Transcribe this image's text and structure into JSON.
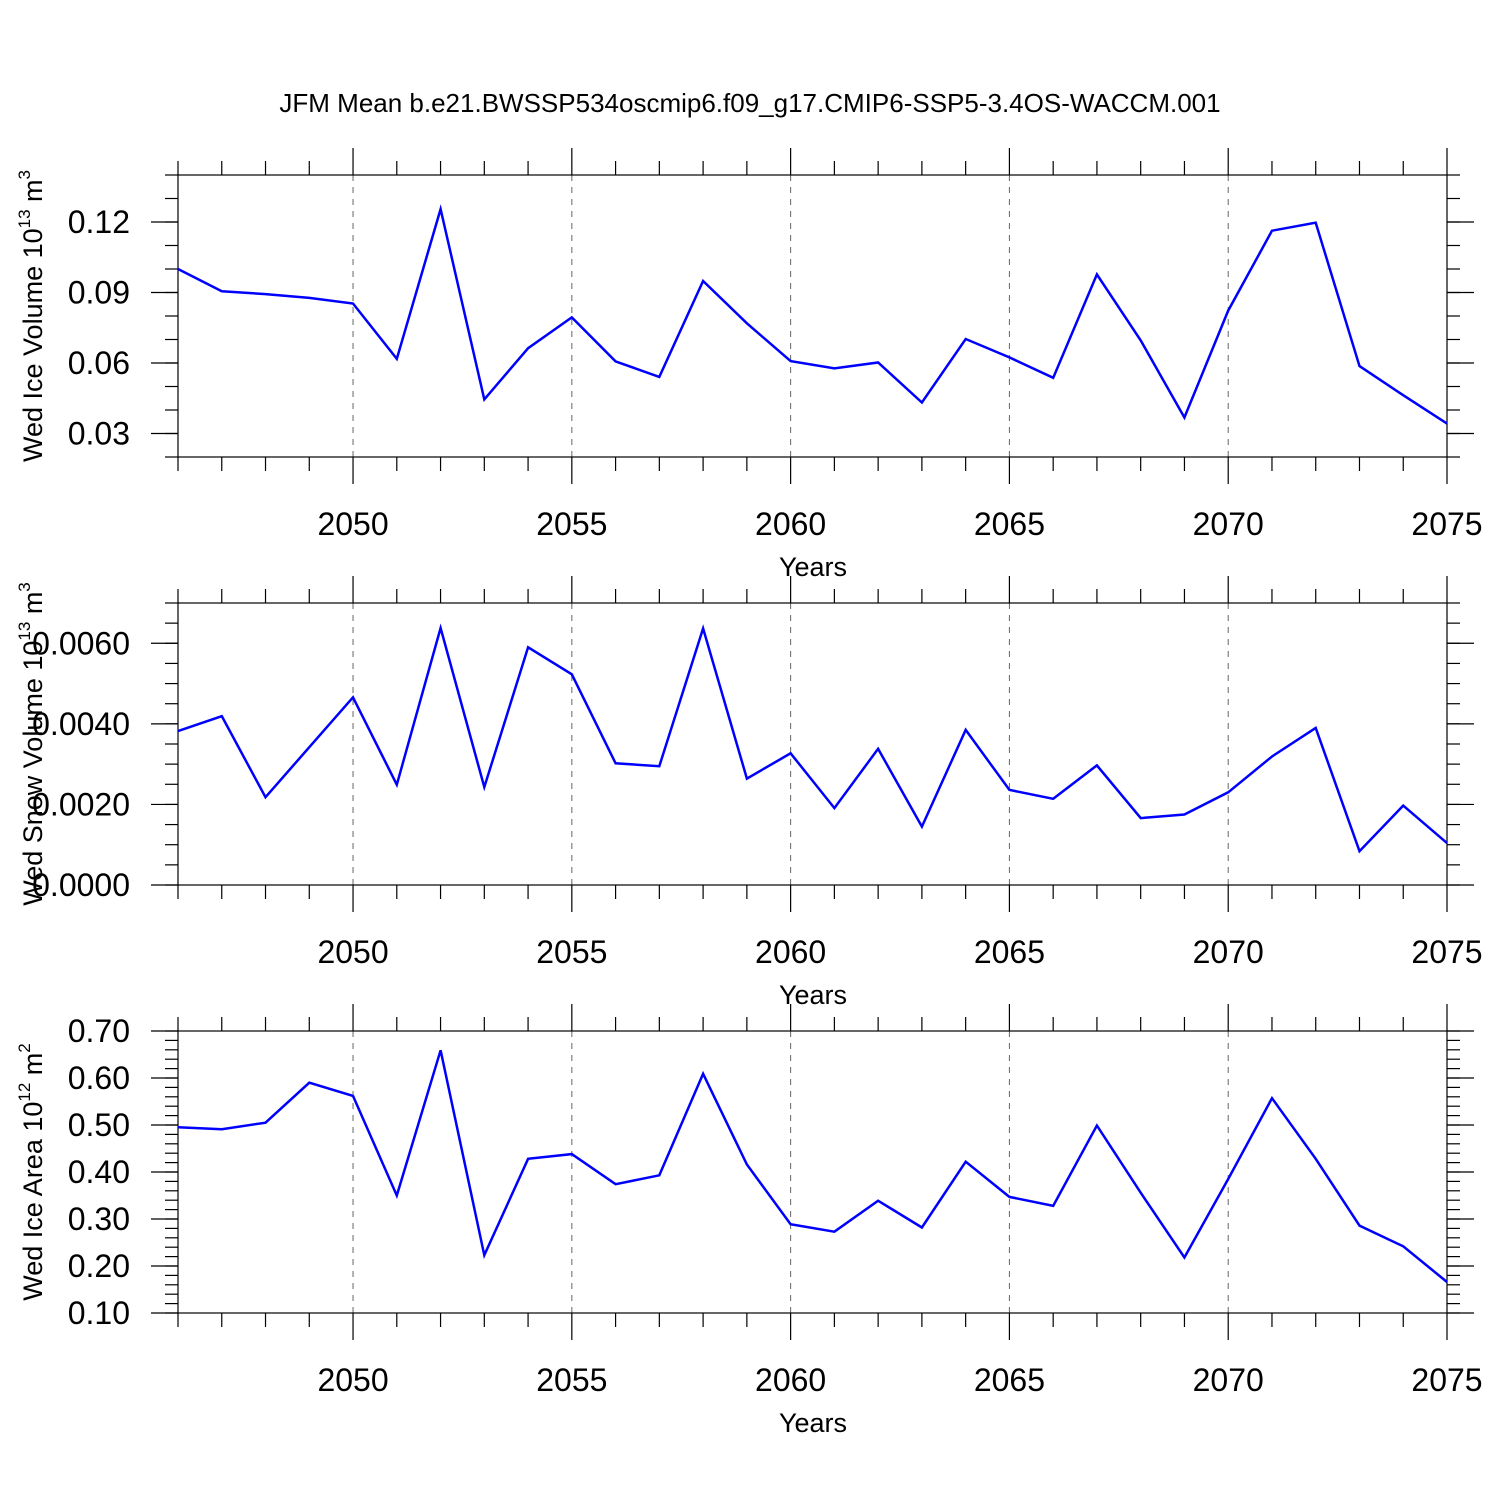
{
  "title": "JFM Mean b.e21.BWSSP534oscmip6.f09_g17.CMIP6-SSP5-3.4OS-WACCM.001",
  "colors": {
    "line": "#0000ff",
    "grid": "#666666",
    "axis": "#000000"
  },
  "chart_data": [
    {
      "type": "line",
      "xlabel": "Years",
      "ylabel": {
        "base": "Wed Ice Volume 10",
        "exp": "13",
        "unit": " m",
        "unit_exp": "3"
      },
      "xlim": [
        2046,
        2075
      ],
      "ylim": [
        0.02,
        0.14
      ],
      "xticks": [
        2050,
        2055,
        2060,
        2065,
        2070,
        2075
      ],
      "yticks": [
        0.03,
        0.06,
        0.09,
        0.12
      ],
      "ytick_labels": [
        "0.03",
        "0.06",
        "0.09",
        "0.12"
      ],
      "y_minor_step": 0.01,
      "grid_x": true,
      "x": [
        2046,
        2047,
        2048,
        2049,
        2050,
        2051,
        2052,
        2053,
        2054,
        2055,
        2056,
        2057,
        2058,
        2059,
        2060,
        2061,
        2062,
        2063,
        2064,
        2065,
        2066,
        2067,
        2068,
        2069,
        2070,
        2071,
        2072,
        2073,
        2074,
        2075
      ],
      "values": [
        0.1,
        0.0905,
        0.0893,
        0.0877,
        0.0853,
        0.0618,
        0.1255,
        0.0445,
        0.0663,
        0.0794,
        0.0607,
        0.0541,
        0.0949,
        0.0769,
        0.0608,
        0.0577,
        0.0602,
        0.0432,
        0.0702,
        0.0624,
        0.0537,
        0.0977,
        0.0696,
        0.0368,
        0.0823,
        0.1163,
        0.1197,
        0.0587,
        0.0463,
        0.0342
      ]
    },
    {
      "type": "line",
      "xlabel": "Years",
      "ylabel": {
        "base": "Wed Snow Volume 10",
        "exp": "13",
        "unit": " m",
        "unit_exp": "3"
      },
      "xlim": [
        2046,
        2075
      ],
      "ylim": [
        0.0,
        0.007
      ],
      "xticks": [
        2050,
        2055,
        2060,
        2065,
        2070,
        2075
      ],
      "yticks": [
        0.0,
        0.002,
        0.004,
        0.006
      ],
      "ytick_labels": [
        "0.0000",
        "0.0020",
        "0.0040",
        "0.0060"
      ],
      "y_minor_step": 0.0005,
      "grid_x": true,
      "x": [
        2046,
        2047,
        2048,
        2049,
        2050,
        2051,
        2052,
        2053,
        2054,
        2055,
        2056,
        2057,
        2058,
        2059,
        2060,
        2061,
        2062,
        2063,
        2064,
        2065,
        2066,
        2067,
        2068,
        2069,
        2070,
        2071,
        2072,
        2073,
        2074,
        2075
      ],
      "values": [
        0.00382,
        0.00419,
        0.00218,
        0.00342,
        0.00466,
        0.00249,
        0.00638,
        0.00243,
        0.0059,
        0.00523,
        0.00302,
        0.00295,
        0.00637,
        0.00264,
        0.00327,
        0.00191,
        0.00338,
        0.00145,
        0.00385,
        0.00236,
        0.00214,
        0.00297,
        0.00166,
        0.00175,
        0.0023,
        0.00319,
        0.0039,
        0.00084,
        0.00197,
        0.00104
      ]
    },
    {
      "type": "line",
      "xlabel": "Years",
      "ylabel": {
        "base": "Wed Ice Area 10",
        "exp": "12",
        "unit": " m",
        "unit_exp": "2"
      },
      "xlim": [
        2046,
        2075
      ],
      "ylim": [
        0.1,
        0.7
      ],
      "xticks": [
        2050,
        2055,
        2060,
        2065,
        2070,
        2075
      ],
      "yticks": [
        0.1,
        0.2,
        0.3,
        0.4,
        0.5,
        0.6,
        0.7
      ],
      "ytick_labels": [
        "0.10",
        "0.20",
        "0.30",
        "0.40",
        "0.50",
        "0.60",
        "0.70"
      ],
      "y_minor_step": 0.02,
      "grid_x": true,
      "x": [
        2046,
        2047,
        2048,
        2049,
        2050,
        2051,
        2052,
        2053,
        2054,
        2055,
        2056,
        2057,
        2058,
        2059,
        2060,
        2061,
        2062,
        2063,
        2064,
        2065,
        2066,
        2067,
        2068,
        2069,
        2070,
        2071,
        2072,
        2073,
        2074,
        2075
      ],
      "values": [
        0.495,
        0.491,
        0.505,
        0.59,
        0.562,
        0.35,
        0.659,
        0.223,
        0.428,
        0.438,
        0.374,
        0.393,
        0.609,
        0.416,
        0.289,
        0.273,
        0.339,
        0.282,
        0.422,
        0.347,
        0.328,
        0.499,
        0.356,
        0.218,
        0.385,
        0.557,
        0.428,
        0.286,
        0.242,
        0.166
      ]
    }
  ]
}
